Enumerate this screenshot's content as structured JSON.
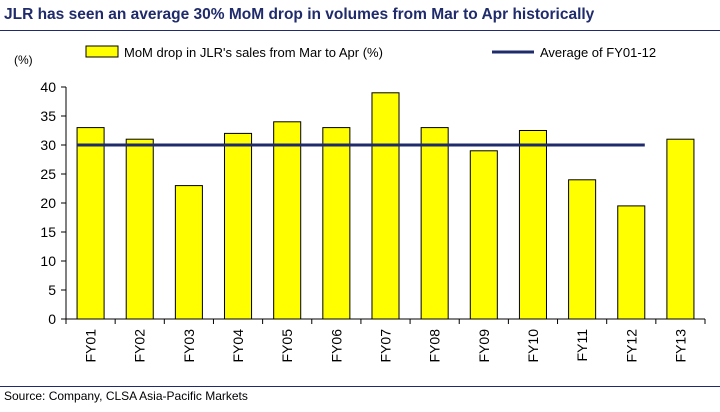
{
  "header": {
    "title": "JLR has seen an average 30% MoM drop in volumes from Mar to Apr historically"
  },
  "footer": {
    "source": "Source: Company, CLSA Asia-Pacific Markets"
  },
  "colors": {
    "bar_fill": "#ffff00",
    "bar_stroke": "#000000",
    "average_line": "#1f2b6b",
    "title": "#1f2b6b"
  },
  "chart_data": {
    "type": "bar",
    "ylabel": "(%)",
    "ylim": [
      0,
      40
    ],
    "yticks": [
      0,
      5,
      10,
      15,
      20,
      25,
      30,
      35,
      40
    ],
    "grid": false,
    "legend_position": "top",
    "categories": [
      "FY01",
      "FY02",
      "FY03",
      "FY04",
      "FY05",
      "FY06",
      "FY07",
      "FY08",
      "FY09",
      "FY10",
      "FY11",
      "FY12",
      "FY13"
    ],
    "series": [
      {
        "name": "MoM drop in JLR's sales from Mar to Apr (%)",
        "type": "bar",
        "values": [
          33,
          31,
          23,
          32,
          34,
          33,
          39,
          33,
          29,
          32.5,
          24,
          19.5,
          31
        ]
      },
      {
        "name": "Average of FY01-12",
        "type": "line",
        "value": 30,
        "from": "FY01",
        "to": "FY12"
      }
    ]
  }
}
